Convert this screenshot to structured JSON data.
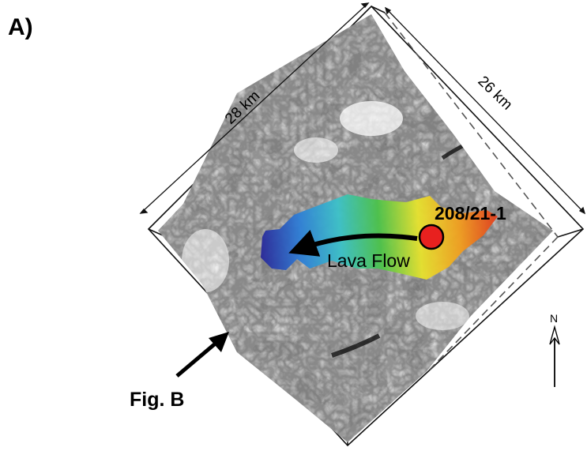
{
  "panel_label": "A)",
  "dimensions": {
    "top_left_edge": "28 km",
    "top_right_edge": "26 km"
  },
  "well": {
    "name": "208/21-1",
    "marker_color": "#e8211f"
  },
  "flow": {
    "label": "Lava Flow",
    "gradient_colors": [
      "#2a2a9a",
      "#2f7fd6",
      "#3cc1c8",
      "#4cc24a",
      "#e6e22e",
      "#f0a020",
      "#e23d1e"
    ]
  },
  "reference": {
    "label": "Fig. B"
  },
  "north": {
    "label": "N"
  }
}
